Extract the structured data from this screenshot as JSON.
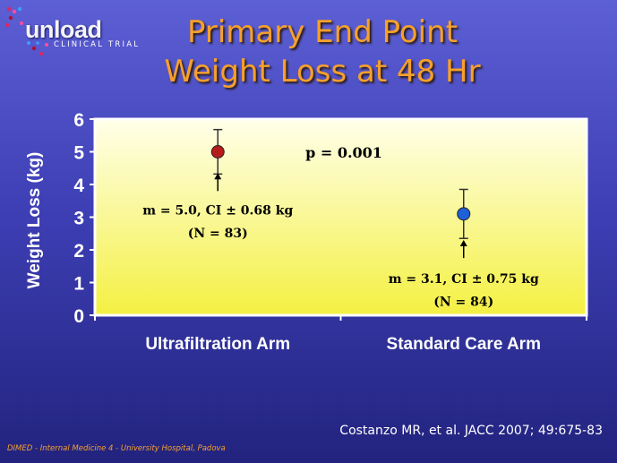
{
  "logo": {
    "word": "unload",
    "subtitle": "CLINICAL TRIAL",
    "dot_colors": [
      "#e0245e",
      "#ff4fa0",
      "#3aa0ff",
      "#b01030"
    ]
  },
  "title": {
    "line1": "Primary End Point",
    "line2": "Weight Loss at 48 Hr"
  },
  "chart_data": {
    "type": "scatter",
    "title": "Primary End Point Weight Loss at 48 Hr",
    "ylabel": "Weight Loss (kg)",
    "xlabel": "",
    "ylim": [
      0,
      6
    ],
    "yticks": [
      0,
      1,
      2,
      3,
      4,
      5,
      6
    ],
    "categories": [
      "Ultrafiltration Arm",
      "Standard Care Arm"
    ],
    "points": [
      {
        "category": "Ultrafiltration Arm",
        "mean": 5.0,
        "ci_low": 4.32,
        "ci_high": 5.68,
        "color": "#b51c1c",
        "label_line1": "m = 5.0, CI ± 0.68 kg",
        "label_line2": "(N = 83)"
      },
      {
        "category": "Standard Care Arm",
        "mean": 3.1,
        "ci_low": 2.35,
        "ci_high": 3.85,
        "color": "#1e60d8",
        "label_line1": "m = 3.1, CI ± 0.75 kg",
        "label_line2": "(N = 84)"
      }
    ],
    "annotation": "p = 0.001",
    "background_gradient": [
      "#ffffea",
      "#f4f042"
    ]
  },
  "citation": "Costanzo MR, et al. JACC 2007; 49:675-83",
  "footer": "DIMED - Internal Medicine 4 - University Hospital, Padova"
}
